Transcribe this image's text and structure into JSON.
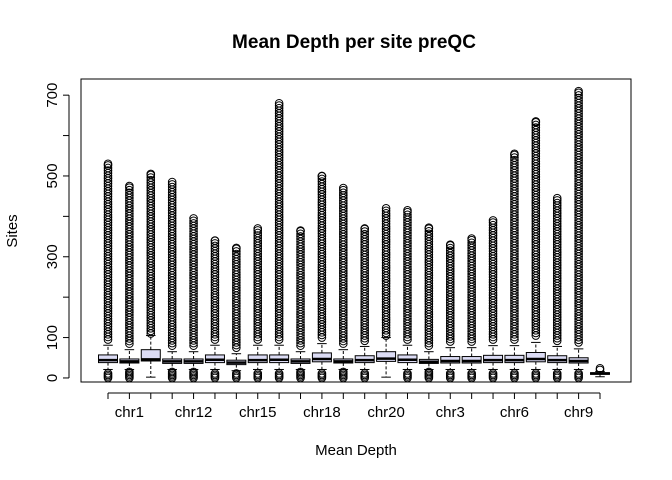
{
  "chart_data": {
    "type": "boxplot",
    "title": "Mean Depth per site preQC",
    "xlabel": "Mean Depth",
    "ylabel": "Sites",
    "ylim": [
      -10,
      740
    ],
    "y_ticks": [
      0,
      100,
      300,
      500,
      700
    ],
    "y_minor_ticks": [
      200,
      400,
      600
    ],
    "x_tick_labels": [
      "chr1",
      "chr12",
      "chr15",
      "chr18",
      "chr20",
      "chr3",
      "chr6",
      "chr9"
    ],
    "x_tick_label_box_indices": [
      1,
      4,
      7,
      10,
      13,
      16,
      19,
      22
    ],
    "grid": false,
    "box_fill": "#dcdcf5",
    "boxes": [
      {
        "q1": 38,
        "median": 44,
        "q3": 57,
        "lower_whisker": 21,
        "upper_whisker": 81,
        "outlier_low": [
          0,
          14
        ],
        "outlier_high_top": 530,
        "outlier_high_start": 95
      },
      {
        "q1": 37,
        "median": 41,
        "q3": 47,
        "lower_whisker": 21,
        "upper_whisker": 70,
        "outlier_low": [
          0,
          18
        ],
        "outlier_high_top": 475,
        "outlier_high_start": 85
      },
      {
        "q1": 42,
        "median": 46,
        "q3": 70,
        "lower_whisker": 2,
        "upper_whisker": 105,
        "outlier_low": [],
        "outlier_high_top": 505,
        "outlier_high_start": 110
      },
      {
        "q1": 36,
        "median": 41,
        "q3": 47,
        "lower_whisker": 21,
        "upper_whisker": 65,
        "outlier_low": [
          0,
          18
        ],
        "outlier_high_top": 485,
        "outlier_high_start": 80
      },
      {
        "q1": 36,
        "median": 41,
        "q3": 47,
        "lower_whisker": 21,
        "upper_whisker": 65,
        "outlier_low": [
          0,
          18
        ],
        "outlier_high_top": 395,
        "outlier_high_start": 80
      },
      {
        "q1": 38,
        "median": 45,
        "q3": 57,
        "lower_whisker": 21,
        "upper_whisker": 81,
        "outlier_low": [
          0,
          14
        ],
        "outlier_high_top": 340,
        "outlier_high_start": 95
      },
      {
        "q1": 33,
        "median": 38,
        "q3": 44,
        "lower_whisker": 18,
        "upper_whisker": 60,
        "outlier_low": [
          0,
          14
        ],
        "outlier_high_top": 322,
        "outlier_high_start": 75
      },
      {
        "q1": 38,
        "median": 44,
        "q3": 57,
        "lower_whisker": 21,
        "upper_whisker": 81,
        "outlier_low": [
          0,
          14
        ],
        "outlier_high_top": 370,
        "outlier_high_start": 95
      },
      {
        "q1": 38,
        "median": 45,
        "q3": 57,
        "lower_whisker": 21,
        "upper_whisker": 81,
        "outlier_low": [
          0,
          14
        ],
        "outlier_high_top": 680,
        "outlier_high_start": 95
      },
      {
        "q1": 36,
        "median": 41,
        "q3": 47,
        "lower_whisker": 21,
        "upper_whisker": 65,
        "outlier_low": [
          0,
          18
        ],
        "outlier_high_top": 365,
        "outlier_high_start": 80
      },
      {
        "q1": 40,
        "median": 47,
        "q3": 62,
        "lower_whisker": 21,
        "upper_whisker": 85,
        "outlier_low": [
          0,
          14
        ],
        "outlier_high_top": 500,
        "outlier_high_start": 100
      },
      {
        "q1": 37,
        "median": 41,
        "q3": 47,
        "lower_whisker": 21,
        "upper_whisker": 70,
        "outlier_low": [
          0,
          18
        ],
        "outlier_high_top": 470,
        "outlier_high_start": 85
      },
      {
        "q1": 38,
        "median": 44,
        "q3": 55,
        "lower_whisker": 21,
        "upper_whisker": 78,
        "outlier_low": [
          0,
          14
        ],
        "outlier_high_top": 370,
        "outlier_high_start": 92
      },
      {
        "q1": 41,
        "median": 48,
        "q3": 65,
        "lower_whisker": 2,
        "upper_whisker": 100,
        "outlier_low": [],
        "outlier_high_top": 420,
        "outlier_high_start": 105
      },
      {
        "q1": 38,
        "median": 45,
        "q3": 57,
        "lower_whisker": 21,
        "upper_whisker": 81,
        "outlier_low": [
          0,
          14
        ],
        "outlier_high_top": 415,
        "outlier_high_start": 95
      },
      {
        "q1": 36,
        "median": 40,
        "q3": 46,
        "lower_whisker": 21,
        "upper_whisker": 65,
        "outlier_low": [
          0,
          18
        ],
        "outlier_high_top": 372,
        "outlier_high_start": 80
      },
      {
        "q1": 37,
        "median": 42,
        "q3": 53,
        "lower_whisker": 21,
        "upper_whisker": 75,
        "outlier_low": [
          0,
          14
        ],
        "outlier_high_top": 330,
        "outlier_high_start": 90
      },
      {
        "q1": 37,
        "median": 42,
        "q3": 53,
        "lower_whisker": 21,
        "upper_whisker": 75,
        "outlier_low": [
          0,
          14
        ],
        "outlier_high_top": 345,
        "outlier_high_start": 90
      },
      {
        "q1": 38,
        "median": 44,
        "q3": 56,
        "lower_whisker": 21,
        "upper_whisker": 80,
        "outlier_low": [
          0,
          14
        ],
        "outlier_high_top": 390,
        "outlier_high_start": 95
      },
      {
        "q1": 38,
        "median": 44,
        "q3": 56,
        "lower_whisker": 21,
        "upper_whisker": 80,
        "outlier_low": [
          0,
          14
        ],
        "outlier_high_top": 555,
        "outlier_high_start": 95
      },
      {
        "q1": 40,
        "median": 47,
        "q3": 63,
        "lower_whisker": 21,
        "upper_whisker": 88,
        "outlier_low": [
          0,
          14
        ],
        "outlier_high_top": 635,
        "outlier_high_start": 105
      },
      {
        "q1": 38,
        "median": 44,
        "q3": 55,
        "lower_whisker": 21,
        "upper_whisker": 78,
        "outlier_low": [
          0,
          14
        ],
        "outlier_high_top": 445,
        "outlier_high_start": 92
      },
      {
        "q1": 37,
        "median": 42,
        "q3": 50,
        "lower_whisker": 21,
        "upper_whisker": 72,
        "outlier_low": [
          0,
          14
        ],
        "outlier_high_top": 710,
        "outlier_high_start": 88
      },
      {
        "q1": 9,
        "median": 11,
        "q3": 13,
        "lower_whisker": 3,
        "upper_whisker": 16,
        "outlier_low": [],
        "outlier_high_top": 24,
        "outlier_high_start": 20
      }
    ]
  }
}
